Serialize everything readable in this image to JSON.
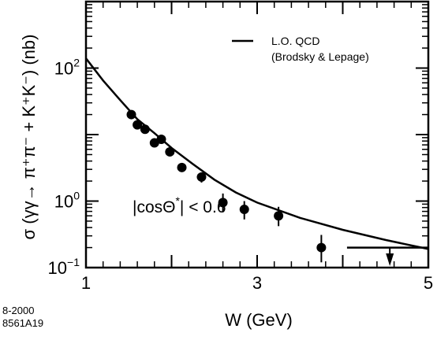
{
  "chart_data": {
    "type": "scatter",
    "xlabel": "W (GeV)",
    "ylabel": "σ (γγ→ π⁺π⁻ + K⁺K⁻) (nb)",
    "x_scale": "linear",
    "y_scale": "log",
    "xlim": [
      1,
      5
    ],
    "ylim": [
      0.1,
      1000
    ],
    "x_ticks": [
      {
        "value": 1,
        "label": "1"
      },
      {
        "value": 3,
        "label": "3"
      },
      {
        "value": 5,
        "label": "5"
      }
    ],
    "y_ticks": [
      {
        "value": 100,
        "base": "10",
        "exp": "2"
      },
      {
        "value": 1,
        "base": "10",
        "exp": "0"
      },
      {
        "value": 0.1,
        "base": "10",
        "exp": "−1"
      }
    ],
    "series": [
      {
        "kind": "points",
        "x": [
          1.53,
          1.6,
          1.69,
          1.8,
          1.88,
          1.98,
          2.12,
          2.35,
          2.6,
          2.85,
          3.25,
          3.75
        ],
        "y": [
          20,
          14,
          12,
          7.5,
          8.5,
          5.5,
          3.2,
          2.3,
          0.95,
          0.75,
          0.6,
          0.2
        ],
        "y_err_low": [
          2,
          1.5,
          1.2,
          0.8,
          0.9,
          0.6,
          0.4,
          0.4,
          0.27,
          0.22,
          0.18,
          0.08
        ],
        "y_err_high": [
          2,
          1.5,
          1.2,
          0.8,
          0.9,
          0.6,
          0.4,
          0.4,
          0.35,
          0.25,
          0.22,
          0.11
        ]
      },
      {
        "name": "L.O. QCD (Brodsky & Lepage)",
        "kind": "line",
        "x": [
          1.0,
          1.2,
          1.4,
          1.6,
          1.8,
          2.0,
          2.25,
          2.5,
          2.75,
          3.0,
          3.5,
          4.0,
          4.5,
          5.0
        ],
        "y": [
          140,
          65,
          33,
          17,
          10.5,
          6.3,
          3.6,
          2.1,
          1.35,
          0.95,
          0.56,
          0.37,
          0.26,
          0.19
        ]
      },
      {
        "kind": "upper-limit",
        "x_range": [
          4.05,
          5.0
        ],
        "y": 0.2,
        "arrow_x": 4.55,
        "arrow_to": 0.1
      }
    ],
    "legend": {
      "placement": "top-right",
      "line1": "L.O. QCD",
      "line2": "(Brodsky & Lepage)"
    },
    "annotation": {
      "prefix": "|cosΘ",
      "sup": "*",
      "suffix": "| < 0.6"
    },
    "footer_code": [
      "8-2000",
      "8561A19"
    ]
  }
}
